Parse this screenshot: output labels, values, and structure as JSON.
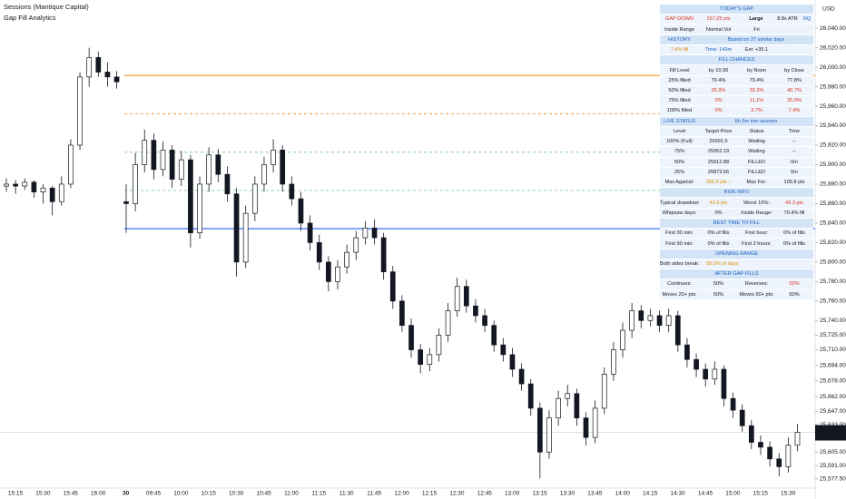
{
  "chart_data": {
    "type": "candlestick",
    "title": "Sessions (Mantique Capital)",
    "subtitle": "Gap Fill Analytics",
    "currency": "USD",
    "ylim": [
      25568,
      26069
    ],
    "yticks": [
      {
        "value": 26040,
        "label": "26,040.00"
      },
      {
        "value": 26020,
        "label": "26,020.00"
      },
      {
        "value": 26000,
        "label": "26,000.00"
      },
      {
        "value": 25980,
        "label": "25,980.00"
      },
      {
        "value": 25960,
        "label": "25,960.00"
      },
      {
        "value": 25940,
        "label": "25,940.00"
      },
      {
        "value": 25920,
        "label": "25,920.00"
      },
      {
        "value": 25900,
        "label": "25,900.00"
      },
      {
        "value": 25880,
        "label": "25,880.00"
      },
      {
        "value": 25860,
        "label": "25,860.00"
      },
      {
        "value": 25840,
        "label": "25,840.00"
      },
      {
        "value": 25820,
        "label": "25,820.00"
      },
      {
        "value": 25800,
        "label": "25,800.00"
      },
      {
        "value": 25780,
        "label": "25,780.00"
      },
      {
        "value": 25760,
        "label": "25,760.00"
      },
      {
        "value": 25740,
        "label": "25,740.00"
      },
      {
        "value": 25725,
        "label": "25,725.00"
      },
      {
        "value": 25710,
        "label": "25,710.00"
      },
      {
        "value": 25694,
        "label": "25,694.00"
      },
      {
        "value": 25678,
        "label": "25,678.00"
      },
      {
        "value": 25662,
        "label": "25,662.00"
      },
      {
        "value": 25647,
        "label": "25,647.00"
      },
      {
        "value": 25633,
        "label": "25,633.00"
      },
      {
        "value": 25605,
        "label": "25,605.00"
      },
      {
        "value": 25591,
        "label": "25,591.00"
      },
      {
        "value": 25577.5,
        "label": "25,577.50"
      }
    ],
    "xticks": [
      "15:15",
      "15:30",
      "15:45",
      "16:00",
      "30",
      "09:45",
      "10:00",
      "10:15",
      "10:30",
      "10:45",
      "11:00",
      "11:15",
      "11:30",
      "11:45",
      "12:00",
      "12:15",
      "12:30",
      "12:45",
      "13:00",
      "13:15",
      "13:30",
      "13:45",
      "14:00",
      "14:15",
      "14:30",
      "14:45",
      "15:00",
      "15:15",
      "15:30"
    ],
    "last_price": {
      "value": 25625.25,
      "label": "25,625.25"
    },
    "countdown": "00:57",
    "up_color": "#ffffff",
    "down_color": "#131722",
    "levels": [
      {
        "price": 25991.5,
        "color": "#f59b23",
        "dashed": false
      },
      {
        "price": 25952.19,
        "color": "#f7a35c",
        "dashed": true
      },
      {
        "price": 25912.88,
        "color": "#8fd3a8",
        "dashed": true
      },
      {
        "price": 25873.56,
        "color": "#8fd3a8",
        "dashed": true
      },
      {
        "price": 25834.25,
        "color": "#2962ff",
        "dashed": false
      }
    ],
    "prior_session": [
      [
        25878,
        25886,
        25872,
        25880
      ],
      [
        25880,
        25884,
        25870,
        25878
      ],
      [
        25878,
        25886,
        25874,
        25882
      ],
      [
        25882,
        25884,
        25866,
        25872
      ],
      [
        25872,
        25880,
        25860,
        25876
      ],
      [
        25876,
        25878,
        25848,
        25862
      ],
      [
        25862,
        25888,
        25858,
        25880
      ],
      [
        25880,
        25926,
        25876,
        25920
      ],
      [
        25920,
        25995,
        25915,
        25990
      ],
      [
        25990,
        26020,
        25980,
        26010
      ],
      [
        26010,
        26016,
        25990,
        25995
      ],
      [
        25995,
        26005,
        25980,
        25990
      ],
      [
        25990,
        25996,
        25978,
        25985
      ]
    ],
    "session": [
      [
        25862,
        25880,
        25830,
        25860
      ],
      [
        25860,
        25912,
        25852,
        25900
      ],
      [
        25900,
        25936,
        25892,
        25925
      ],
      [
        25925,
        25932,
        25885,
        25895
      ],
      [
        25895,
        25924,
        25888,
        25915
      ],
      [
        25915,
        25920,
        25876,
        25885
      ],
      [
        25885,
        25914,
        25878,
        25905
      ],
      [
        25905,
        25910,
        25815,
        25830
      ],
      [
        25830,
        25888,
        25824,
        25880
      ],
      [
        25880,
        25918,
        25872,
        25910
      ],
      [
        25910,
        25916,
        25882,
        25890
      ],
      [
        25890,
        25898,
        25862,
        25870
      ],
      [
        25870,
        25876,
        25785,
        25800
      ],
      [
        25800,
        25858,
        25794,
        25850
      ],
      [
        25850,
        25888,
        25842,
        25880
      ],
      [
        25880,
        25908,
        25872,
        25900
      ],
      [
        25900,
        25926,
        25892,
        25915
      ],
      [
        25915,
        25920,
        25872,
        25880
      ],
      [
        25880,
        25888,
        25858,
        25865
      ],
      [
        25865,
        25872,
        25832,
        25840
      ],
      [
        25840,
        25848,
        25812,
        25820
      ],
      [
        25820,
        25828,
        25792,
        25800
      ],
      [
        25800,
        25806,
        25770,
        25780
      ],
      [
        25780,
        25802,
        25772,
        25795
      ],
      [
        25795,
        25818,
        25788,
        25810
      ],
      [
        25810,
        25832,
        25802,
        25825
      ],
      [
        25825,
        25842,
        25818,
        25835
      ],
      [
        25835,
        25844,
        25818,
        25825
      ],
      [
        25825,
        25830,
        25782,
        25790
      ],
      [
        25790,
        25796,
        25752,
        25760
      ],
      [
        25760,
        25766,
        25728,
        25735
      ],
      [
        25735,
        25742,
        25702,
        25710
      ],
      [
        25710,
        25716,
        25686,
        25695
      ],
      [
        25695,
        25712,
        25688,
        25705
      ],
      [
        25705,
        25732,
        25698,
        25725
      ],
      [
        25725,
        25758,
        25718,
        25750
      ],
      [
        25750,
        25784,
        25744,
        25775
      ],
      [
        25775,
        25782,
        25748,
        25755
      ],
      [
        25755,
        25762,
        25738,
        25745
      ],
      [
        25745,
        25752,
        25728,
        25735
      ],
      [
        25735,
        25740,
        25708,
        25715
      ],
      [
        25715,
        25722,
        25698,
        25705
      ],
      [
        25705,
        25712,
        25682,
        25690
      ],
      [
        25690,
        25696,
        25668,
        25675
      ],
      [
        25675,
        25680,
        25642,
        25650
      ],
      [
        25650,
        25656,
        25578,
        25605
      ],
      [
        25605,
        25648,
        25598,
        25640
      ],
      [
        25640,
        25668,
        25632,
        25660
      ],
      [
        25660,
        25674,
        25652,
        25665
      ],
      [
        25665,
        25670,
        25632,
        25640
      ],
      [
        25640,
        25646,
        25612,
        25620
      ],
      [
        25620,
        25658,
        25614,
        25650
      ],
      [
        25650,
        25692,
        25644,
        25685
      ],
      [
        25685,
        25718,
        25678,
        25710
      ],
      [
        25710,
        25738,
        25702,
        25730
      ],
      [
        25730,
        25758,
        25722,
        25750
      ],
      [
        25750,
        25756,
        25732,
        25740
      ],
      [
        25740,
        25752,
        25734,
        25745
      ],
      [
        25745,
        25750,
        25728,
        25735
      ],
      [
        25735,
        25752,
        25728,
        25745
      ],
      [
        25745,
        25750,
        25708,
        25715
      ],
      [
        25715,
        25722,
        25692,
        25700
      ],
      [
        25700,
        25706,
        25682,
        25690
      ],
      [
        25690,
        25696,
        25672,
        25680
      ],
      [
        25680,
        25698,
        25674,
        25690
      ],
      [
        25690,
        25694,
        25652,
        25660
      ],
      [
        25660,
        25666,
        25640,
        25648
      ],
      [
        25648,
        25654,
        25626,
        25632
      ],
      [
        25632,
        25638,
        25608,
        25615
      ],
      [
        25615,
        25622,
        25602,
        25610
      ],
      [
        25610,
        25616,
        25590,
        25598
      ],
      [
        25598,
        25604,
        25580,
        25590
      ],
      [
        25590,
        25620,
        25584,
        25612
      ],
      [
        25612,
        25634,
        25606,
        25625.25
      ]
    ]
  },
  "table": {
    "rows": [
      {
        "kind": "header",
        "cells": [
          "TODAY'S GAP"
        ]
      },
      {
        "kind": "row",
        "cells": [
          {
            "text": "GAP DOWN",
            "tone": "red"
          },
          {
            "text": "157.25 pts",
            "tone": "red"
          },
          {
            "text": "Large",
            "tone": "bold"
          },
          "8.8x ATR",
          {
            "text": "NQ",
            "tone": "blue"
          }
        ]
      },
      {
        "kind": "row",
        "cells": [
          "Inside Range",
          "Normal Vol",
          "Fri"
        ]
      },
      {
        "kind": "header",
        "cells": [
          "HISTORY",
          "Based on 27 similar days"
        ]
      },
      {
        "kind": "row",
        "cells": [
          {
            "text": "7.4% fill",
            "tone": "orange"
          },
          {
            "text": "Time: 143m",
            "tone": "blue"
          },
          "Ext: +35.1"
        ]
      },
      {
        "kind": "header",
        "cells": [
          "FILL CHANCES"
        ]
      },
      {
        "kind": "row",
        "cells": [
          "Fill Level",
          "by 10:30",
          "by Noon",
          "by Close"
        ]
      },
      {
        "kind": "row",
        "cells": [
          "25% filled",
          "70.4%",
          "70.4%",
          "77.8%"
        ]
      },
      {
        "kind": "row",
        "cells": [
          "50% filled",
          {
            "text": "25.9%",
            "tone": "red"
          },
          {
            "text": "33.3%",
            "tone": "red"
          },
          {
            "text": "40.7%",
            "tone": "red"
          }
        ]
      },
      {
        "kind": "row",
        "cells": [
          "75% filled",
          {
            "text": "0%",
            "tone": "red"
          },
          {
            "text": "11.1%",
            "tone": "red"
          },
          {
            "text": "25.9%",
            "tone": "red"
          }
        ]
      },
      {
        "kind": "row",
        "cells": [
          "100% filled",
          {
            "text": "0%",
            "tone": "red"
          },
          {
            "text": "3.7%",
            "tone": "red"
          },
          {
            "text": "7.4%",
            "tone": "red"
          }
        ]
      },
      {
        "kind": "header",
        "cells": [
          "LIVE STATUS",
          "6h 5m into session"
        ]
      },
      {
        "kind": "row",
        "cells": [
          "Level",
          "Target Price",
          "Status",
          "Time"
        ]
      },
      {
        "kind": "row",
        "cells": [
          "100% (Full)",
          "25991.5",
          "Waiting",
          "--"
        ]
      },
      {
        "kind": "row",
        "cells": [
          "75%",
          "25952.19",
          "Waiting",
          "--"
        ]
      },
      {
        "kind": "row",
        "cells": [
          "50%",
          "25912.88",
          "FILLED",
          "0m"
        ]
      },
      {
        "kind": "row",
        "cells": [
          "25%",
          "25873.56",
          "FILLED",
          "0m"
        ]
      },
      {
        "kind": "row",
        "cells": [
          "Max Against:",
          {
            "text": "265.5 pts ↑",
            "tone": "orange"
          },
          "Max For:",
          "105.8 pts"
        ]
      },
      {
        "kind": "header",
        "cells": [
          "RISK INFO"
        ]
      },
      {
        "kind": "row",
        "cells": [
          "Typical drawdown:",
          {
            "text": "43.9 pts",
            "tone": "orange"
          },
          "Worst 10%:",
          {
            "text": "43.3 pts",
            "tone": "red"
          }
        ]
      },
      {
        "kind": "row",
        "cells": [
          "Whipsaw days:",
          "0%",
          "Inside Range:",
          "70.4% fill"
        ]
      },
      {
        "kind": "header",
        "cells": [
          "BEST TIME TO FILL"
        ]
      },
      {
        "kind": "row",
        "cells": [
          "First 30 min:",
          "0% of fills",
          "First hour:",
          "0% of fills"
        ]
      },
      {
        "kind": "row",
        "cells": [
          "First 90 min:",
          "0% of fills",
          "First 2 hours:",
          "0% of fills"
        ]
      },
      {
        "kind": "header",
        "cells": [
          "OPENING RANGE"
        ]
      },
      {
        "kind": "row",
        "cells": [
          "Both sides break:",
          {
            "text": "55.6% of days",
            "tone": "orange"
          }
        ]
      },
      {
        "kind": "header",
        "cells": [
          "AFTER GAP FILLS"
        ]
      },
      {
        "kind": "row",
        "cells": [
          "Continues:",
          "50%",
          "Reverses:",
          {
            "text": "50%",
            "tone": "red"
          }
        ]
      },
      {
        "kind": "row",
        "cells": [
          "Moves 20+ pts:",
          "50%",
          "Moves 50+ pts:",
          "50%"
        ]
      }
    ]
  }
}
